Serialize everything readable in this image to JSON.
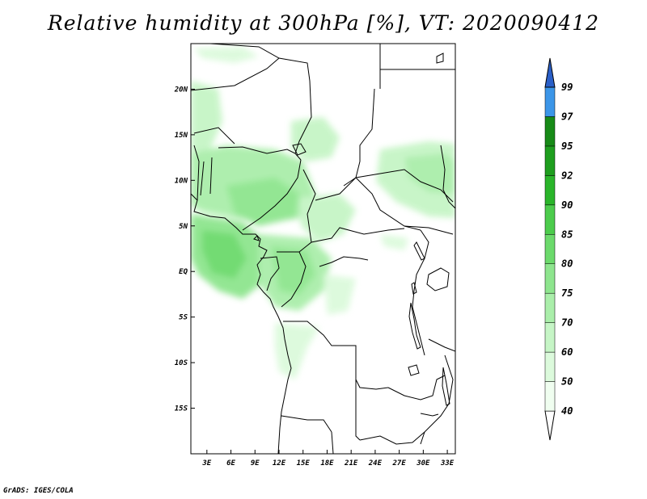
{
  "title": "Relative humidity at 300hPa [%], VT: 2020090412",
  "credit": "GrADS: IGES/COLA",
  "map": {
    "lon_range": [
      1,
      34
    ],
    "lat_range": [
      -20,
      25
    ],
    "lon_ticks": [
      {
        "value": 3,
        "label": "3E"
      },
      {
        "value": 6,
        "label": "6E"
      },
      {
        "value": 9,
        "label": "9E"
      },
      {
        "value": 12,
        "label": "12E"
      },
      {
        "value": 15,
        "label": "15E"
      },
      {
        "value": 18,
        "label": "18E"
      },
      {
        "value": 21,
        "label": "21E"
      },
      {
        "value": 24,
        "label": "24E"
      },
      {
        "value": 27,
        "label": "27E"
      },
      {
        "value": 30,
        "label": "30E"
      },
      {
        "value": 33,
        "label": "33E"
      }
    ],
    "lat_ticks": [
      {
        "value": 20,
        "label": "20N"
      },
      {
        "value": 15,
        "label": "15N"
      },
      {
        "value": 10,
        "label": "10N"
      },
      {
        "value": 5,
        "label": "5N"
      },
      {
        "value": 0,
        "label": "EQ"
      },
      {
        "value": -5,
        "label": "5S"
      },
      {
        "value": -10,
        "label": "10S"
      },
      {
        "value": -15,
        "label": "15S"
      }
    ]
  },
  "colorbar": {
    "levels": [
      {
        "label": "40",
        "color": "#f0fef0"
      },
      {
        "label": "50",
        "color": "#dcfadc"
      },
      {
        "label": "60",
        "color": "#c6f5c6"
      },
      {
        "label": "70",
        "color": "#aaeeaa"
      },
      {
        "label": "75",
        "color": "#8ee58e"
      },
      {
        "label": "80",
        "color": "#6cda6c"
      },
      {
        "label": "85",
        "color": "#4ccc4c"
      },
      {
        "label": "90",
        "color": "#2ab52a"
      },
      {
        "label": "92",
        "color": "#1e9e1e"
      },
      {
        "label": "95",
        "color": "#178a17"
      },
      {
        "label": "97",
        "color": "#3c96e8"
      },
      {
        "label": "99",
        "color": "#1e6fd6"
      }
    ],
    "top_color": "#2a5fc8"
  }
}
